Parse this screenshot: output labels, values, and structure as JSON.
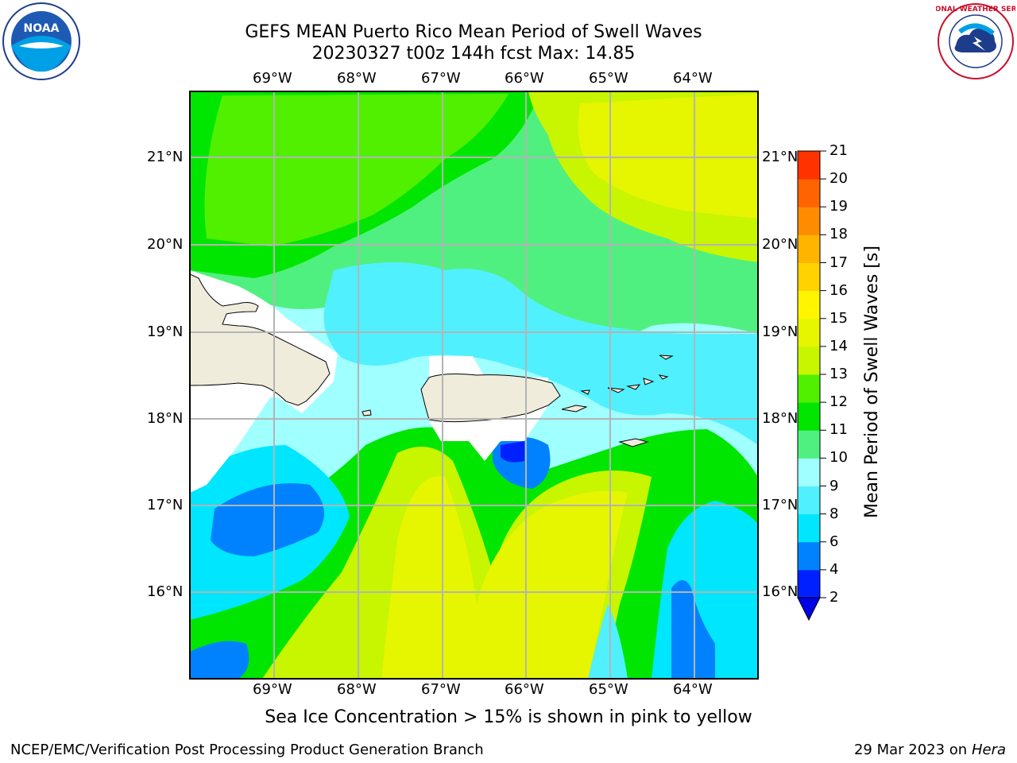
{
  "title_line1": "GEFS MEAN Puerto Rico Mean Period of Swell Waves",
  "title_line2": "20230327 t00z 144h fcst   Max: 14.85",
  "logos": {
    "left": "NOAA",
    "right_text": "NATIONAL WEATHER SERVICE"
  },
  "lon_labels": [
    "69°W",
    "68°W",
    "67°W",
    "66°W",
    "65°W",
    "64°W"
  ],
  "lat_labels": [
    "21°N",
    "20°N",
    "19°N",
    "18°N",
    "17°N",
    "16°N"
  ],
  "colorbar": {
    "title": "Mean Period of Swell Waves [s]",
    "levels": [
      "2",
      "4",
      "6",
      "8",
      "9",
      "10",
      "11",
      "12",
      "13",
      "14",
      "15",
      "16",
      "17",
      "18",
      "19",
      "20",
      "21"
    ],
    "colors": [
      "#0020ff",
      "#0082ff",
      "#00e6ff",
      "#50f0ff",
      "#a0ffff",
      "#50f080",
      "#00e600",
      "#50f000",
      "#c8f500",
      "#e6f500",
      "#fff500",
      "#ffd200",
      "#ffb400",
      "#ff8c00",
      "#ff6400",
      "#ff3200",
      "#ff0000"
    ],
    "under_color": "#0000e6"
  },
  "caption": "Sea Ice Concentration > 15% is shown in pink to yellow",
  "footer_left": "NCEP/EMC/Verification Post Processing Product Generation Branch",
  "footer_date": "29 Mar 2023 on",
  "footer_host": "Hera"
}
